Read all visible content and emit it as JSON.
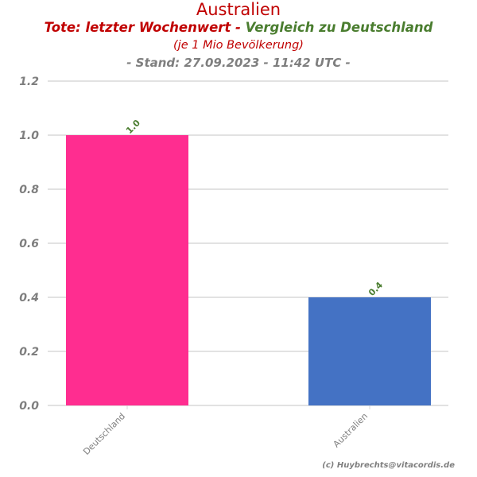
{
  "header": {
    "title": "Australien",
    "subtitle_part1": "Tote: letzter Wochenwert - ",
    "subtitle_part2": "Vergleich zu Deutschland",
    "note": "(je 1 Mio Bevölkerung)",
    "stand": "- Stand: 27.09.2023 - 11:42 UTC -"
  },
  "credit": "(c) Huybrechts@vitacordis.de",
  "colors": {
    "title": "#c00000",
    "subtitle_green": "#4a7d2f",
    "grey_text": "#7f7f7f",
    "grid": "#d9d9d9",
    "value_label": "#4a7d2f"
  },
  "chart_data": {
    "type": "bar",
    "categories": [
      "Deutschland",
      "Australien"
    ],
    "values": [
      1.0,
      0.4
    ],
    "value_labels": [
      "1.0",
      "0.4"
    ],
    "bar_colors": [
      "#ff2d90",
      "#4472c4"
    ],
    "yticks": [
      "0.0",
      "0.2",
      "0.4",
      "0.6",
      "0.8",
      "1.0",
      "1.2"
    ],
    "ylim": [
      0,
      1.2
    ],
    "grid": true,
    "xlabel": "",
    "ylabel": ""
  }
}
